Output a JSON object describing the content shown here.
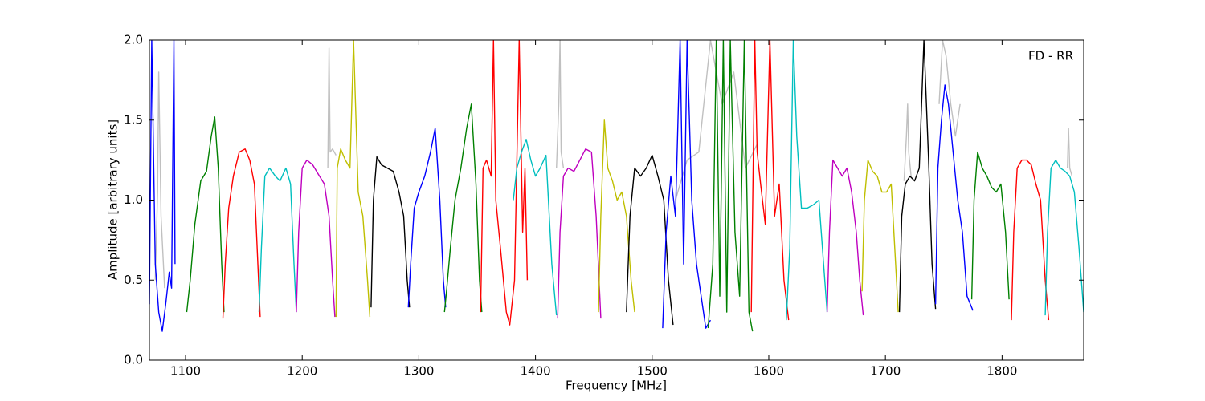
{
  "chart_data": {
    "type": "line",
    "annotation": "FD - RR",
    "xlabel": "Frequency [MHz]",
    "ylabel": "Amplitude [arbitrary units]",
    "xlim": [
      1069,
      1870
    ],
    "ylim": [
      0,
      2
    ],
    "xticks": [
      1100,
      1200,
      1300,
      1400,
      1500,
      1600,
      1700,
      1800
    ],
    "yticks": [
      {
        "value": 0,
        "label": "0.0"
      },
      {
        "value": 0.5,
        "label": "0.5"
      },
      {
        "value": 1,
        "label": "1.0"
      },
      {
        "value": 1.5,
        "label": "1.5"
      },
      {
        "value": 2,
        "label": "2.0"
      }
    ],
    "grid": false,
    "series": [
      {
        "color": "#c0c0c0",
        "x": [
          1074,
          1076,
          1077,
          1079,
          1082
        ],
        "values": [
          0.5,
          1.05,
          1.8,
          0.9,
          0.45
        ]
      },
      {
        "color": "#c0c0c0",
        "x": [
          1222,
          1223,
          1224,
          1226,
          1229
        ],
        "values": [
          1.2,
          1.95,
          1.3,
          1.32,
          1.28
        ]
      },
      {
        "color": "#c0c0c0",
        "x": [
          1418,
          1420,
          1421,
          1422,
          1424
        ],
        "values": [
          1.2,
          1.6,
          2.0,
          1.3,
          1.2
        ]
      },
      {
        "color": "#c0c0c0",
        "x": [
          1520,
          1530,
          1540,
          1550,
          1560,
          1570,
          1580,
          1590
        ],
        "values": [
          1.0,
          1.25,
          1.3,
          2.0,
          1.6,
          1.8,
          1.2,
          1.35
        ]
      },
      {
        "color": "#c0c0c0",
        "x": [
          1716,
          1718,
          1719,
          1720,
          1722
        ],
        "values": [
          1.12,
          1.4,
          1.6,
          1.3,
          1.15
        ]
      },
      {
        "color": "#c0c0c0",
        "x": [
          1746,
          1749,
          1752,
          1756,
          1760,
          1764
        ],
        "values": [
          1.6,
          2.0,
          1.9,
          1.6,
          1.4,
          1.6
        ]
      },
      {
        "color": "#c0c0c0",
        "x": [
          1856,
          1857,
          1858,
          1860
        ],
        "values": [
          1.2,
          1.45,
          1.2,
          1.15
        ]
      },
      {
        "color": "#0000ff",
        "x": [
          1069,
          1071,
          1074,
          1077,
          1080,
          1083,
          1086,
          1088,
          1090,
          1091
        ],
        "values": [
          0.35,
          2.0,
          0.6,
          0.3,
          0.18,
          0.35,
          0.55,
          0.45,
          2.0,
          0.6
        ]
      },
      {
        "color": "#008000",
        "x": [
          1101,
          1104,
          1108,
          1113,
          1118,
          1122,
          1125,
          1128,
          1131,
          1133
        ],
        "values": [
          0.3,
          0.5,
          0.85,
          1.12,
          1.18,
          1.4,
          1.52,
          1.2,
          0.6,
          0.3
        ]
      },
      {
        "color": "#ff0000",
        "x": [
          1132,
          1134,
          1137,
          1141,
          1146,
          1151,
          1155,
          1159,
          1162,
          1164
        ],
        "values": [
          0.26,
          0.6,
          0.95,
          1.15,
          1.3,
          1.32,
          1.25,
          1.1,
          0.6,
          0.27
        ]
      },
      {
        "color": "#00bfbf",
        "x": [
          1163,
          1165,
          1168,
          1172,
          1177,
          1181,
          1186,
          1190,
          1193,
          1195
        ],
        "values": [
          0.3,
          0.7,
          1.15,
          1.2,
          1.15,
          1.12,
          1.2,
          1.1,
          0.6,
          0.3
        ]
      },
      {
        "color": "#bf00bf",
        "x": [
          1195,
          1197,
          1200,
          1204,
          1209,
          1214,
          1219,
          1223,
          1226,
          1228
        ],
        "values": [
          0.3,
          0.8,
          1.2,
          1.25,
          1.22,
          1.16,
          1.1,
          0.9,
          0.5,
          0.27
        ]
      },
      {
        "color": "#bfbf00",
        "x": [
          1229,
          1230,
          1233,
          1237,
          1241,
          1244,
          1248,
          1252,
          1256,
          1258
        ],
        "values": [
          0.27,
          1.2,
          1.32,
          1.25,
          1.2,
          2.0,
          1.05,
          0.9,
          0.5,
          0.27
        ]
      },
      {
        "color": "#000000",
        "x": [
          1259,
          1261,
          1264,
          1268,
          1273,
          1278,
          1283,
          1287,
          1290,
          1292
        ],
        "values": [
          0.33,
          1.0,
          1.27,
          1.22,
          1.2,
          1.18,
          1.05,
          0.9,
          0.5,
          0.33
        ]
      },
      {
        "color": "#0000ff",
        "x": [
          1291,
          1293,
          1296,
          1300,
          1305,
          1310,
          1314,
          1318,
          1321,
          1323
        ],
        "values": [
          0.33,
          0.6,
          0.95,
          1.05,
          1.15,
          1.3,
          1.45,
          1.0,
          0.5,
          0.33
        ]
      },
      {
        "color": "#008000",
        "x": [
          1322,
          1324,
          1327,
          1331,
          1336,
          1341,
          1345,
          1349,
          1352,
          1354
        ],
        "values": [
          0.3,
          0.45,
          0.7,
          1.0,
          1.2,
          1.45,
          1.6,
          1.1,
          0.5,
          0.3
        ]
      },
      {
        "color": "#ff0000",
        "x": [
          1353,
          1355,
          1358,
          1362,
          1364,
          1366,
          1370,
          1375,
          1378,
          1382,
          1386,
          1389,
          1391,
          1393
        ],
        "values": [
          0.3,
          1.2,
          1.25,
          1.15,
          2.0,
          1.0,
          0.7,
          0.3,
          0.22,
          0.5,
          2.0,
          0.8,
          1.2,
          0.5
        ]
      },
      {
        "color": "#00bfbf",
        "x": [
          1381,
          1384,
          1388,
          1392,
          1396,
          1400,
          1404,
          1409,
          1414,
          1418
        ],
        "values": [
          1.0,
          1.2,
          1.3,
          1.38,
          1.25,
          1.15,
          1.2,
          1.28,
          0.6,
          0.28
        ]
      },
      {
        "color": "#bf00bf",
        "x": [
          1419,
          1421,
          1424,
          1428,
          1433,
          1438,
          1443,
          1448,
          1452,
          1456
        ],
        "values": [
          0.26,
          0.8,
          1.15,
          1.2,
          1.18,
          1.25,
          1.32,
          1.3,
          0.9,
          0.26
        ]
      },
      {
        "color": "#bfbf00",
        "x": [
          1454,
          1456,
          1459,
          1462,
          1466,
          1470,
          1474,
          1478,
          1482,
          1485
        ],
        "values": [
          0.3,
          0.9,
          1.5,
          1.2,
          1.12,
          1.0,
          1.05,
          0.9,
          0.5,
          0.3
        ]
      },
      {
        "color": "#000000",
        "x": [
          1478,
          1481,
          1485,
          1490,
          1495,
          1500,
          1505,
          1510,
          1514,
          1518
        ],
        "values": [
          0.3,
          0.9,
          1.2,
          1.15,
          1.2,
          1.28,
          1.15,
          1.0,
          0.5,
          0.22
        ]
      },
      {
        "color": "#0000ff",
        "x": [
          1509,
          1512,
          1516,
          1520,
          1524,
          1527,
          1530,
          1534,
          1538,
          1542,
          1546,
          1550
        ],
        "values": [
          0.2,
          0.8,
          1.15,
          0.9,
          2.0,
          0.6,
          2.0,
          1.0,
          0.6,
          0.4,
          0.2,
          0.25
        ]
      },
      {
        "color": "#008000",
        "x": [
          1548,
          1552,
          1555,
          1558,
          1561,
          1564,
          1567,
          1571,
          1575,
          1579,
          1583,
          1586
        ],
        "values": [
          0.2,
          0.6,
          2.0,
          0.4,
          2.0,
          0.3,
          2.0,
          0.8,
          0.4,
          2.0,
          0.3,
          0.18
        ]
      },
      {
        "color": "#ff0000",
        "x": [
          1585,
          1588,
          1590,
          1593,
          1597,
          1601,
          1605,
          1609,
          1613,
          1617
        ],
        "values": [
          0.3,
          2.0,
          1.3,
          1.1,
          0.85,
          2.0,
          0.9,
          1.1,
          0.5,
          0.25
        ]
      },
      {
        "color": "#00bfbf",
        "x": [
          1615,
          1618,
          1621,
          1624,
          1628,
          1633,
          1638,
          1643,
          1647,
          1650
        ],
        "values": [
          0.25,
          0.7,
          2.0,
          1.4,
          0.95,
          0.95,
          0.97,
          1.0,
          0.6,
          0.3
        ]
      },
      {
        "color": "#bf00bf",
        "x": [
          1650,
          1652,
          1655,
          1659,
          1663,
          1667,
          1671,
          1675,
          1678,
          1681
        ],
        "values": [
          0.3,
          0.8,
          1.25,
          1.2,
          1.15,
          1.2,
          1.05,
          0.8,
          0.5,
          0.28
        ]
      },
      {
        "color": "#bfbf00",
        "x": [
          1680,
          1682,
          1685,
          1689,
          1693,
          1697,
          1701,
          1705,
          1708,
          1711
        ],
        "values": [
          0.43,
          1.0,
          1.25,
          1.18,
          1.15,
          1.05,
          1.05,
          1.1,
          0.7,
          0.3
        ]
      },
      {
        "color": "#000000",
        "x": [
          1712,
          1714,
          1717,
          1721,
          1725,
          1729,
          1733,
          1737,
          1740,
          1743
        ],
        "values": [
          0.3,
          0.9,
          1.1,
          1.15,
          1.12,
          1.2,
          2.0,
          1.25,
          0.6,
          0.32
        ]
      },
      {
        "color": "#0000ff",
        "x": [
          1743,
          1745,
          1748,
          1751,
          1754,
          1758,
          1762,
          1766,
          1770,
          1775
        ],
        "values": [
          0.35,
          1.2,
          1.5,
          1.72,
          1.6,
          1.3,
          1.0,
          0.8,
          0.4,
          0.31
        ]
      },
      {
        "color": "#008000",
        "x": [
          1774,
          1776,
          1779,
          1783,
          1787,
          1791,
          1795,
          1799,
          1803,
          1806
        ],
        "values": [
          0.38,
          1.0,
          1.3,
          1.2,
          1.15,
          1.08,
          1.05,
          1.1,
          0.8,
          0.38
        ]
      },
      {
        "color": "#ff0000",
        "x": [
          1808,
          1810,
          1813,
          1817,
          1821,
          1825,
          1829,
          1833,
          1837,
          1840
        ],
        "values": [
          0.25,
          0.8,
          1.2,
          1.25,
          1.25,
          1.22,
          1.1,
          1.0,
          0.5,
          0.25
        ]
      },
      {
        "color": "#00bfbf",
        "x": [
          1837,
          1839,
          1842,
          1846,
          1850,
          1854,
          1858,
          1862,
          1866,
          1870
        ],
        "values": [
          0.28,
          0.8,
          1.2,
          1.25,
          1.2,
          1.18,
          1.15,
          1.05,
          0.7,
          0.3
        ]
      }
    ]
  }
}
